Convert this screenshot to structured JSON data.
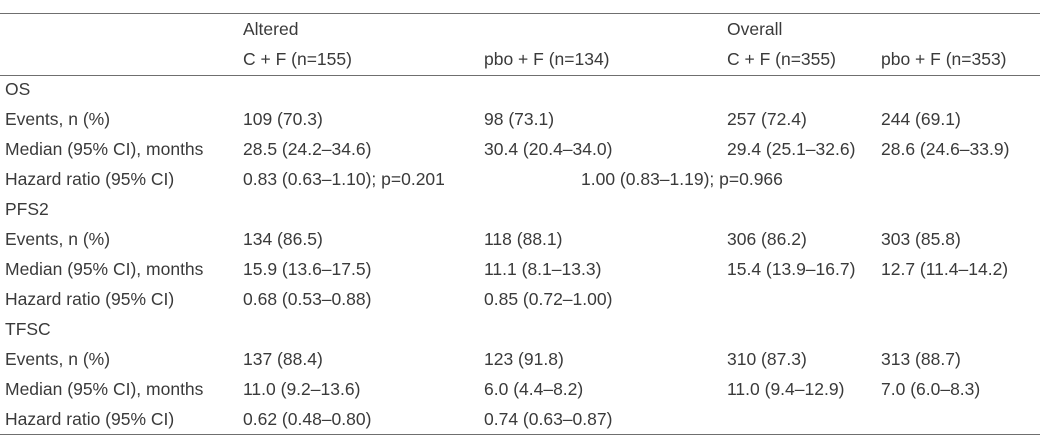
{
  "header": {
    "group_altered": "Altered",
    "group_overall": "Overall",
    "columns": [
      "C + F (n=155)",
      "pbo + F (n=134)",
      "C + F (n=355)",
      "pbo + F (n=353)"
    ]
  },
  "sections": [
    {
      "title": "OS",
      "rows": [
        {
          "label": "Events, n (%)",
          "cells": [
            "109 (70.3)",
            "98 (73.1)",
            "257 (72.4)",
            "244 (69.1)"
          ]
        },
        {
          "label": "Median (95% CI), months",
          "cells": [
            "28.5 (24.2–34.6)",
            "30.4 (20.4–34.0)",
            "29.4 (25.1–32.6)",
            "28.6 (24.6–33.9)"
          ]
        },
        {
          "label": "Hazard ratio (95% CI)",
          "cells": [
            "0.83 (0.63–1.10); p=0.201",
            "1.00 (0.83–1.19); p=0.966",
            "",
            ""
          ]
        }
      ]
    },
    {
      "title": "PFS2",
      "rows": [
        {
          "label": "Events, n (%)",
          "cells": [
            "134 (86.5)",
            "118 (88.1)",
            "306 (86.2)",
            "303 (85.8)"
          ]
        },
        {
          "label": "Median (95% CI), months",
          "cells": [
            "15.9 (13.6–17.5)",
            "11.1 (8.1–13.3)",
            "15.4 (13.9–16.7)",
            "12.7 (11.4–14.2)"
          ]
        },
        {
          "label": "Hazard ratio (95% CI)",
          "cells": [
            "0.68 (0.53–0.88)",
            "0.85 (0.72–1.00)",
            "",
            ""
          ]
        }
      ]
    },
    {
      "title": "TFSC",
      "rows": [
        {
          "label": "Events, n (%)",
          "cells": [
            "137 (88.4)",
            "123 (91.8)",
            "310 (87.3)",
            "313 (88.7)"
          ]
        },
        {
          "label": "Median (95% CI), months",
          "cells": [
            "11.0 (9.2–13.6)",
            "6.0 (4.4–8.2)",
            "11.0 (9.4–12.9)",
            "7.0 (6.0–8.3)"
          ]
        },
        {
          "label": "Hazard ratio (95% CI)",
          "cells": [
            "0.62 (0.48–0.80)",
            "0.74 (0.63–0.87)",
            "",
            ""
          ]
        }
      ]
    }
  ]
}
